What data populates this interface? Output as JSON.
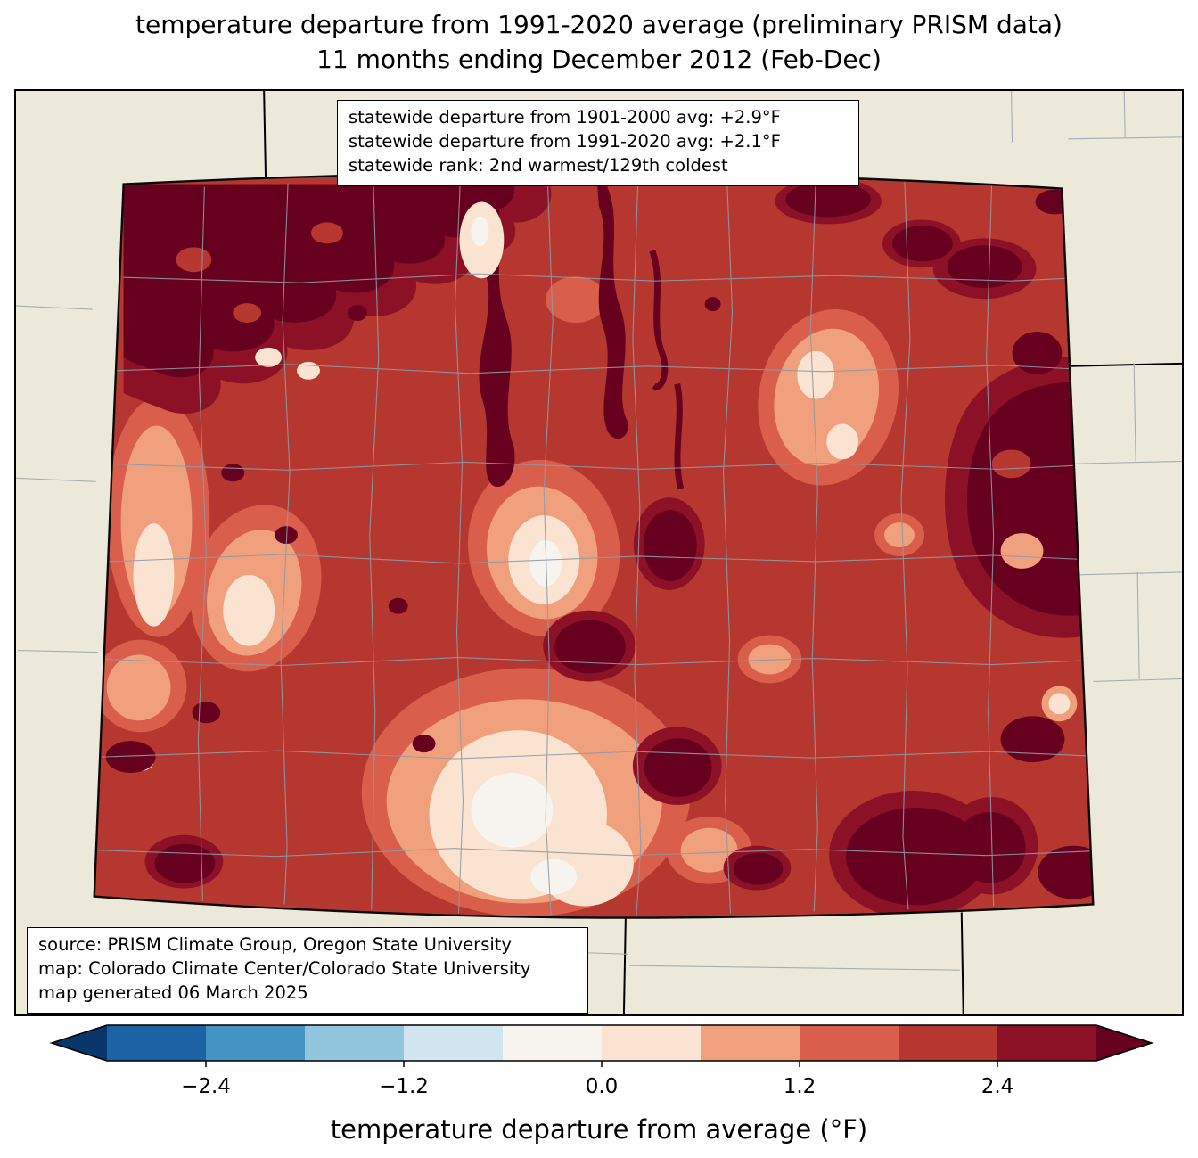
{
  "title": {
    "line1": "temperature departure from 1991-2020 average (preliminary PRISM data)",
    "line2": "11 months ending December 2012 (Feb-Dec)"
  },
  "stats_box": {
    "lines": [
      "statewide departure from 1901-2000 avg: +2.9°F",
      "statewide departure from 1991-2020 avg: +2.1°F",
      "statewide rank: 2nd warmest/129th coldest"
    ]
  },
  "source_box": {
    "lines": [
      "source: PRISM Climate Group, Oregon State University",
      "map: Colorado Climate Center/Colorado State University",
      "map generated 06 March 2025"
    ]
  },
  "map": {
    "region": "Colorado",
    "background_color": "#ece9da",
    "state_border_color": "#0a0a0a",
    "county_line_color": "#8e9ba3"
  },
  "colorbar": {
    "label": "temperature departure from average (°F)",
    "ticks": [
      "−2.4",
      "−1.2",
      "0.0",
      "1.2",
      "2.4"
    ],
    "tick_values": [
      -2.4,
      -1.2,
      0.0,
      1.2,
      2.4
    ],
    "range": [
      -3.0,
      3.0
    ],
    "under_color": "#08366b",
    "over_color": "#67001f",
    "segments": [
      {
        "from": -3.0,
        "to": -2.4,
        "color": "#1c63a5"
      },
      {
        "from": -2.4,
        "to": -1.8,
        "color": "#4393c3"
      },
      {
        "from": -1.8,
        "to": -1.2,
        "color": "#92c5de"
      },
      {
        "from": -1.2,
        "to": -0.6,
        "color": "#d1e5f0"
      },
      {
        "from": -0.6,
        "to": 0.0,
        "color": "#f7f4f0"
      },
      {
        "from": 0.0,
        "to": 0.6,
        "color": "#fbe3d1"
      },
      {
        "from": 0.6,
        "to": 1.2,
        "color": "#f0a07c"
      },
      {
        "from": 1.2,
        "to": 1.8,
        "color": "#d95f4c"
      },
      {
        "from": 1.8,
        "to": 2.4,
        "color": "#b5372f"
      },
      {
        "from": 2.4,
        "to": 3.0,
        "color": "#8c1127"
      }
    ]
  }
}
